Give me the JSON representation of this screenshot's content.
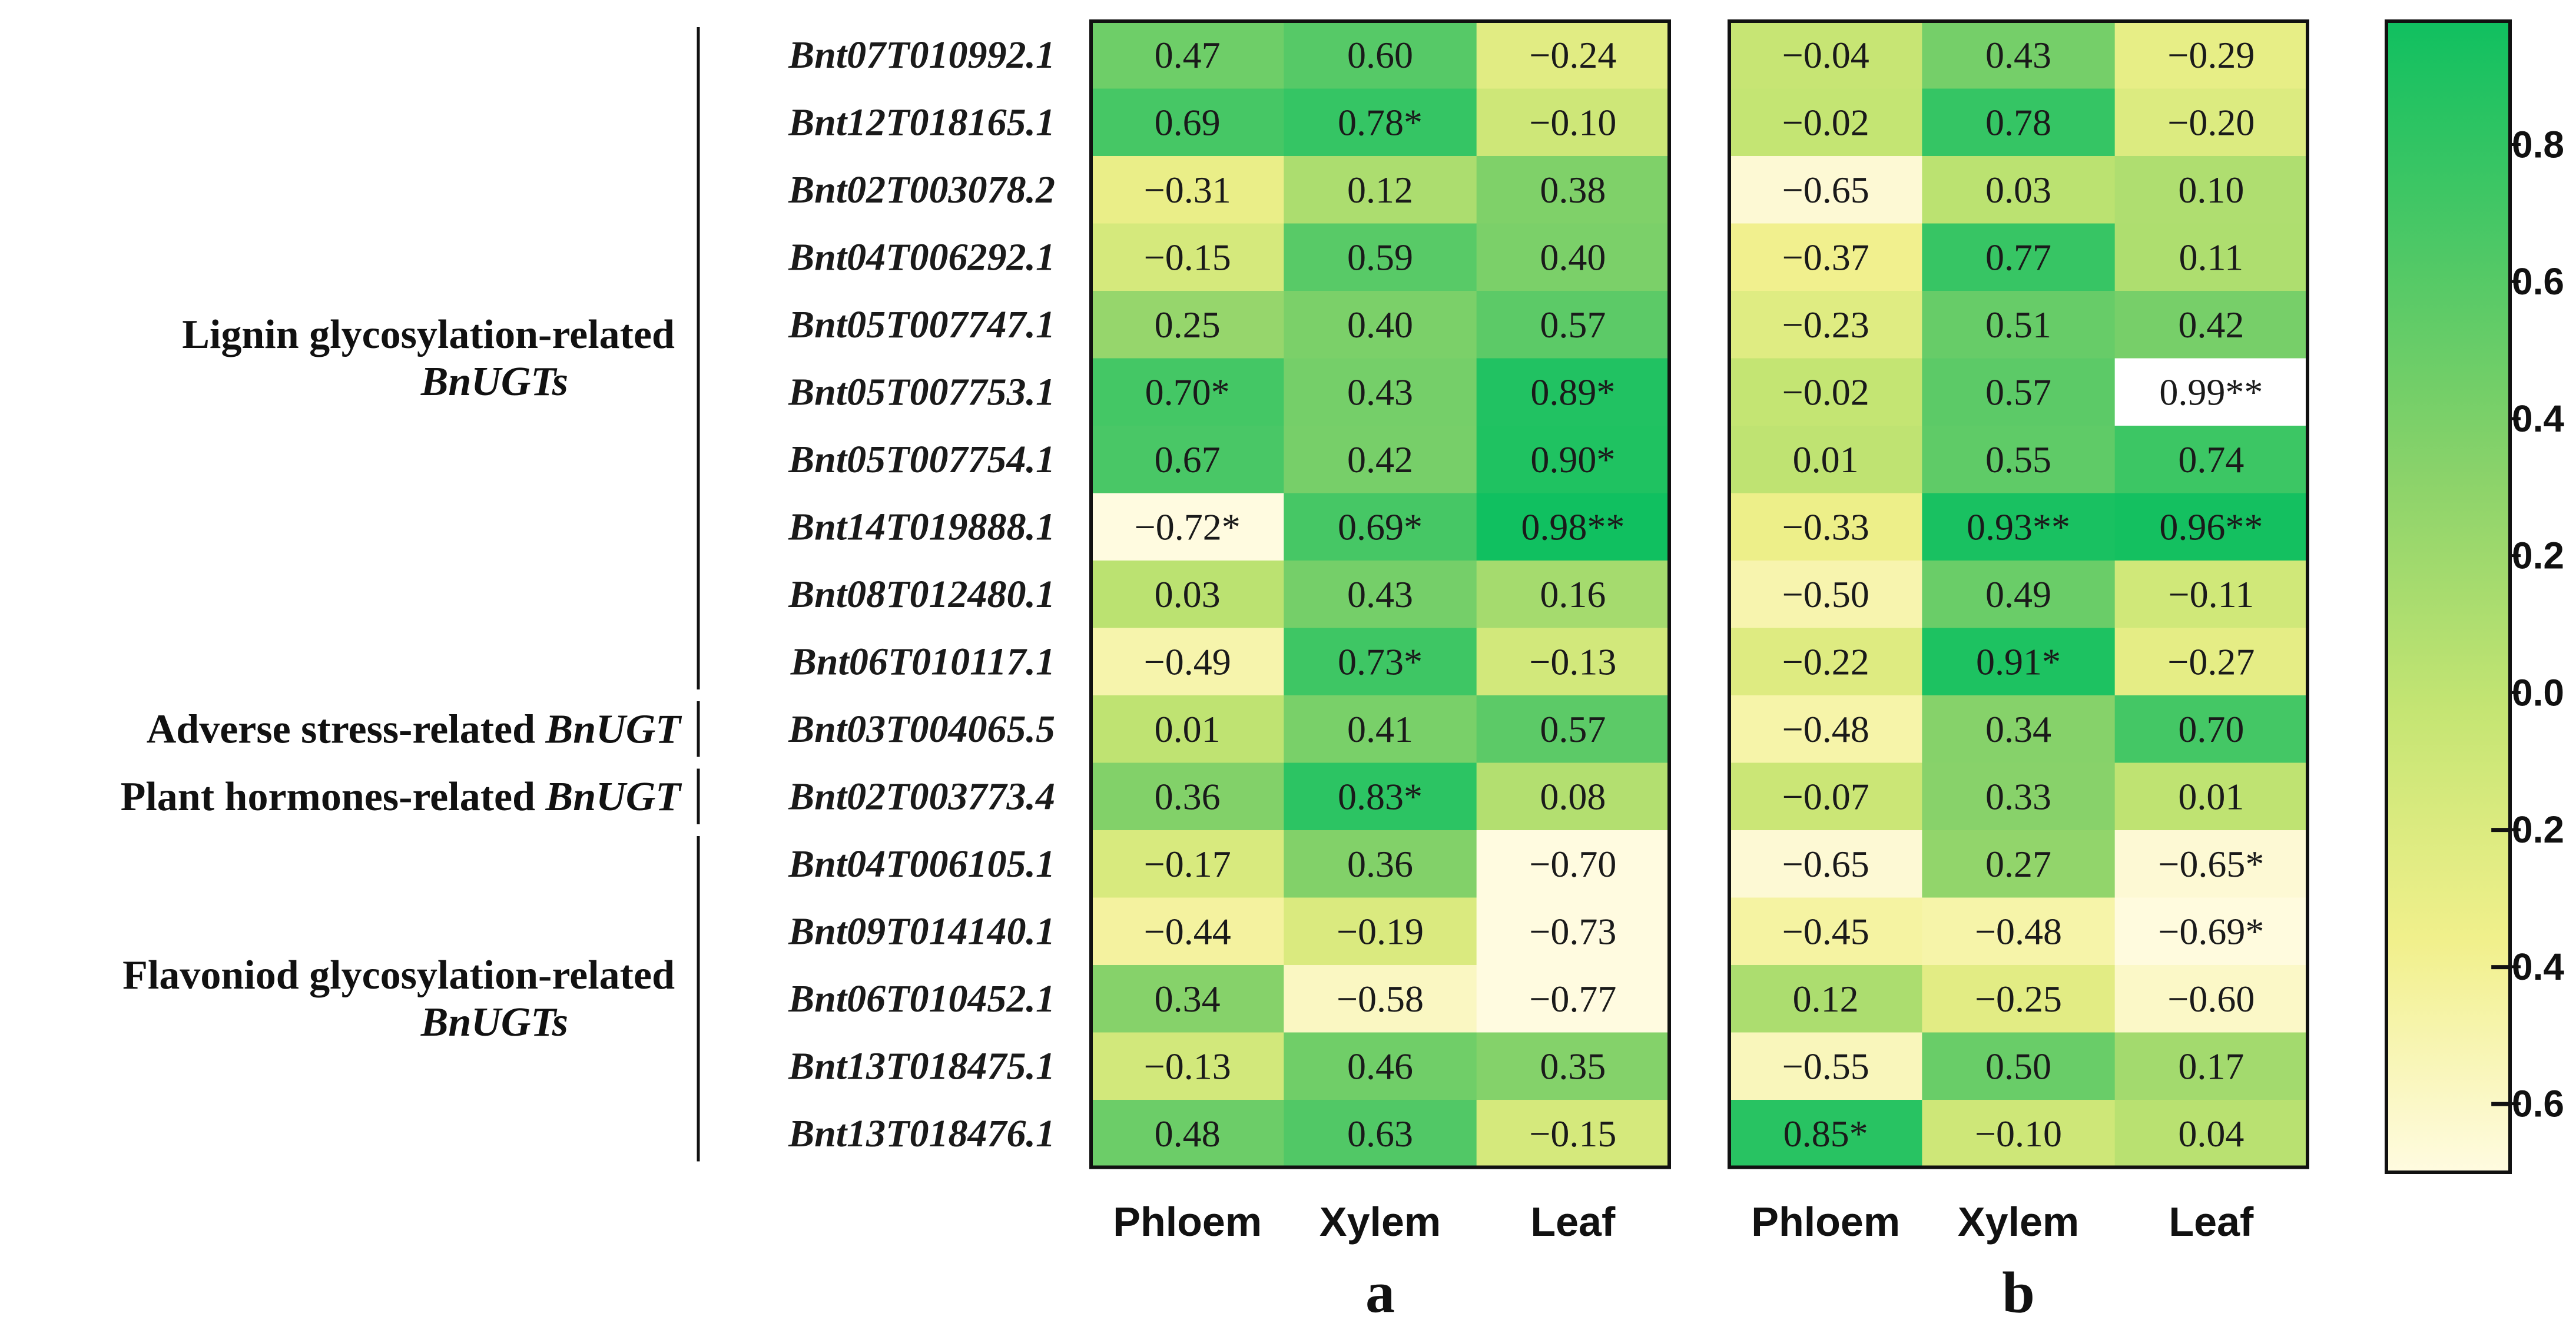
{
  "chart_data": {
    "type": "heatmap",
    "genes": [
      "Bnt07T010992.1",
      "Bnt12T018165.1",
      "Bnt02T003078.2",
      "Bnt04T006292.1",
      "Bnt05T007747.1",
      "Bnt05T007753.1",
      "Bnt05T007754.1",
      "Bnt14T019888.1",
      "Bnt08T012480.1",
      "Bnt06T010117.1",
      "Bnt03T004065.5",
      "Bnt02T003773.4",
      "Bnt04T006105.1",
      "Bnt09T014140.1",
      "Bnt06T010452.1",
      "Bnt13T018475.1",
      "Bnt13T018476.1"
    ],
    "groups": [
      {
        "label": "Lignin glycosylation-related",
        "label_italic": "BnUGTs",
        "start": 0,
        "end": 9
      },
      {
        "label": "Adverse stress-related",
        "label_italic": "BnUGT",
        "start": 10,
        "end": 10
      },
      {
        "label": "Plant hormones-related",
        "label_italic": "BnUGT",
        "start": 11,
        "end": 11
      },
      {
        "label": "Flavoniod glycosylation-related",
        "label_italic": "BnUGTs",
        "start": 12,
        "end": 16
      }
    ],
    "columns": [
      "Phloem",
      "Xylem",
      "Leaf"
    ],
    "panels": [
      {
        "label": "a",
        "values": [
          [
            0.47,
            0.6,
            -0.24
          ],
          [
            0.69,
            0.78,
            -0.1
          ],
          [
            -0.31,
            0.12,
            0.38
          ],
          [
            -0.15,
            0.59,
            0.4
          ],
          [
            0.25,
            0.4,
            0.57
          ],
          [
            0.7,
            0.43,
            0.89
          ],
          [
            0.67,
            0.42,
            0.9
          ],
          [
            -0.72,
            0.69,
            0.98
          ],
          [
            0.03,
            0.43,
            0.16
          ],
          [
            -0.49,
            0.73,
            -0.13
          ],
          [
            0.01,
            0.41,
            0.57
          ],
          [
            0.36,
            0.83,
            0.08
          ],
          [
            -0.17,
            0.36,
            -0.7
          ],
          [
            -0.44,
            -0.19,
            -0.73
          ],
          [
            0.34,
            -0.58,
            -0.77
          ],
          [
            -0.13,
            0.46,
            0.35
          ],
          [
            0.48,
            0.63,
            -0.15
          ]
        ],
        "labels": [
          [
            "0.47",
            "0.60",
            "−0.24"
          ],
          [
            "0.69",
            "0.78*",
            "−0.10"
          ],
          [
            "−0.31",
            "0.12",
            "0.38"
          ],
          [
            "−0.15",
            "0.59",
            "0.40"
          ],
          [
            "0.25",
            "0.40",
            "0.57"
          ],
          [
            "0.70*",
            "0.43",
            "0.89*"
          ],
          [
            "0.67",
            "0.42",
            "0.90*"
          ],
          [
            "−0.72*",
            "0.69*",
            "0.98**"
          ],
          [
            "0.03",
            "0.43",
            "0.16"
          ],
          [
            "−0.49",
            "0.73*",
            "−0.13"
          ],
          [
            "0.01",
            "0.41",
            "0.57"
          ],
          [
            "0.36",
            "0.83*",
            "0.08"
          ],
          [
            "−0.17",
            "0.36",
            "−0.70"
          ],
          [
            "−0.44",
            "−0.19",
            "−0.73"
          ],
          [
            "0.34",
            "−0.58",
            "−0.77"
          ],
          [
            "−0.13",
            "0.46",
            "0.35"
          ],
          [
            "0.48",
            "0.63",
            "−0.15"
          ]
        ]
      },
      {
        "label": "b",
        "values": [
          [
            -0.04,
            0.43,
            -0.29
          ],
          [
            -0.02,
            0.78,
            -0.2
          ],
          [
            -0.65,
            0.03,
            0.1
          ],
          [
            -0.37,
            0.77,
            0.11
          ],
          [
            -0.23,
            0.51,
            0.42
          ],
          [
            -0.02,
            0.57,
            0.99
          ],
          [
            0.01,
            0.55,
            0.74
          ],
          [
            -0.33,
            0.93,
            0.96
          ],
          [
            -0.5,
            0.49,
            -0.11
          ],
          [
            -0.22,
            0.91,
            -0.27
          ],
          [
            -0.48,
            0.34,
            0.7
          ],
          [
            -0.07,
            0.33,
            0.01
          ],
          [
            -0.65,
            0.27,
            -0.65
          ],
          [
            -0.45,
            -0.48,
            -0.69
          ],
          [
            0.12,
            -0.25,
            -0.6
          ],
          [
            -0.55,
            0.5,
            0.17
          ],
          [
            0.85,
            -0.1,
            0.04
          ]
        ],
        "labels": [
          [
            "−0.04",
            "0.43",
            "−0.29"
          ],
          [
            "−0.02",
            "0.78",
            "−0.20"
          ],
          [
            "−0.65",
            "0.03",
            "0.10"
          ],
          [
            "−0.37",
            "0.77",
            "0.11"
          ],
          [
            "−0.23",
            "0.51",
            "0.42"
          ],
          [
            "−0.02",
            "0.57",
            "0.99**"
          ],
          [
            "0.01",
            "0.55",
            "0.74"
          ],
          [
            "−0.33",
            "0.93**",
            "0.96**"
          ],
          [
            "−0.50",
            "0.49",
            "−0.11"
          ],
          [
            "−0.22",
            "0.91*",
            "−0.27"
          ],
          [
            "−0.48",
            "0.34",
            "0.70"
          ],
          [
            "−0.07",
            "0.33",
            "0.01"
          ],
          [
            "−0.65",
            "0.27",
            "−0.65*"
          ],
          [
            "−0.45",
            "−0.48",
            "−0.69*"
          ],
          [
            "0.12",
            "−0.25",
            "−0.60"
          ],
          [
            "−0.55",
            "0.50",
            "0.17"
          ],
          [
            "0.85*",
            "−0.10",
            "0.04"
          ]
        ],
        "white_cells": [
          [
            5,
            2
          ]
        ]
      }
    ],
    "colorbar": {
      "min": -0.7,
      "max": 0.98,
      "ticks": [
        0.8,
        0.6,
        0.4,
        0.2,
        0.0,
        -0.2,
        -0.4,
        -0.6
      ],
      "tick_labels": [
        "0.8",
        "0.6",
        "0.4",
        "0.2",
        "0.0",
        "−0.2",
        "−0.4",
        "−0.6"
      ],
      "colors": [
        "#fffbe0",
        "#f1f08c",
        "#c5e573",
        "#8cd36a",
        "#4ec866",
        "#10c060"
      ]
    }
  }
}
